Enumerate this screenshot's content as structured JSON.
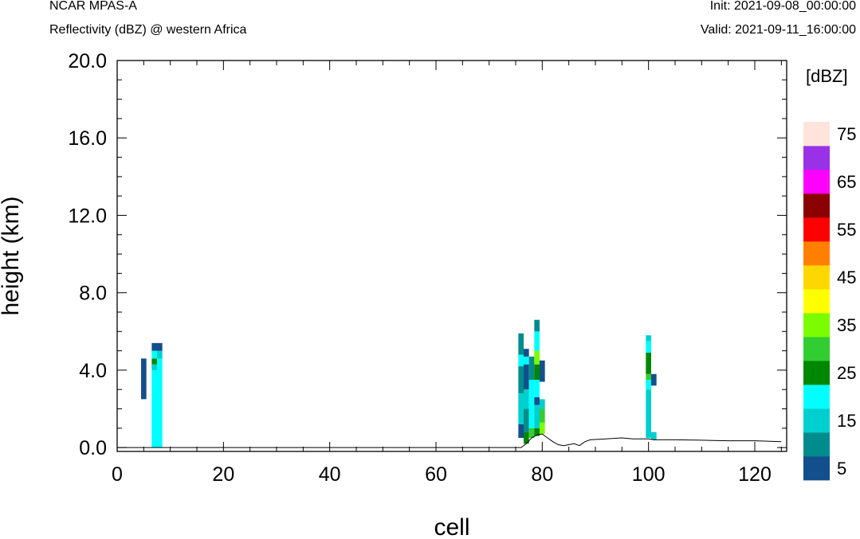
{
  "header": {
    "model": "NCAR MPAS-A",
    "field": "Reflectivity (dBZ) @ western Africa",
    "init": "Init: 2021-09-08_00:00:00",
    "valid": "Valid: 2021-09-11_16:00:00"
  },
  "chart_data": {
    "type": "heatmap",
    "xlabel": "cell",
    "ylabel": "height (km)",
    "xlim": [
      0,
      126
    ],
    "ylim": [
      -0.2,
      20.0
    ],
    "xticks": [
      0,
      20,
      40,
      60,
      80,
      100,
      120
    ],
    "yticks": [
      "0.0",
      "4.0",
      "8.0",
      "12.0",
      "16.0",
      "20.0"
    ],
    "grid": false,
    "colorbar": {
      "title": "[dBZ]",
      "levels": [
        5,
        10,
        15,
        20,
        25,
        30,
        35,
        40,
        45,
        50,
        55,
        60,
        65,
        70,
        75
      ],
      "tick_labels": [
        "5",
        "15",
        "25",
        "35",
        "45",
        "55",
        "65",
        "75"
      ],
      "colors": [
        "#134f8c",
        "#008c8c",
        "#00cfcf",
        "#00ffff",
        "#008700",
        "#32cd32",
        "#7cfc00",
        "#ffff00",
        "#ffd700",
        "#ff8000",
        "#ff0000",
        "#8b0000",
        "#ff00ff",
        "#9932e6",
        "#ffe4dc"
      ]
    },
    "terrain": [
      [
        0,
        0.0
      ],
      [
        76,
        0.0
      ],
      [
        77,
        0.2
      ],
      [
        78,
        0.5
      ],
      [
        79,
        0.65
      ],
      [
        80,
        0.7
      ],
      [
        81,
        0.5
      ],
      [
        82,
        0.3
      ],
      [
        83,
        0.15
      ],
      [
        84,
        0.1
      ],
      [
        85,
        0.15
      ],
      [
        86,
        0.2
      ],
      [
        87,
        0.1
      ],
      [
        88,
        0.3
      ],
      [
        89,
        0.4
      ],
      [
        92,
        0.45
      ],
      [
        95,
        0.5
      ],
      [
        97,
        0.45
      ],
      [
        100,
        0.45
      ],
      [
        101,
        0.4
      ],
      [
        105,
        0.4
      ],
      [
        110,
        0.38
      ],
      [
        115,
        0.35
      ],
      [
        120,
        0.35
      ],
      [
        125,
        0.3
      ]
    ],
    "cells": [
      {
        "x": 5,
        "y0": 2.5,
        "y1": 4.6,
        "dbz": 5
      },
      {
        "x": 7,
        "y0": 0.0,
        "y1": 4.0,
        "dbz": 20
      },
      {
        "x": 7,
        "y0": 4.0,
        "y1": 4.3,
        "dbz": 15
      },
      {
        "x": 7,
        "y0": 4.3,
        "y1": 4.6,
        "dbz": 25
      },
      {
        "x": 7,
        "y0": 4.6,
        "y1": 5.0,
        "dbz": 20
      },
      {
        "x": 7,
        "y0": 5.0,
        "y1": 5.4,
        "dbz": 5
      },
      {
        "x": 8,
        "y0": 0.0,
        "y1": 4.6,
        "dbz": 20
      },
      {
        "x": 8,
        "y0": 4.6,
        "y1": 5.0,
        "dbz": 15
      },
      {
        "x": 8,
        "y0": 5.0,
        "y1": 5.4,
        "dbz": 5
      },
      {
        "x": 76,
        "y0": 0.5,
        "y1": 1.2,
        "dbz": 5
      },
      {
        "x": 76,
        "y0": 1.2,
        "y1": 2.8,
        "dbz": 15
      },
      {
        "x": 76,
        "y0": 2.8,
        "y1": 4.2,
        "dbz": 10
      },
      {
        "x": 76,
        "y0": 4.2,
        "y1": 4.8,
        "dbz": 20
      },
      {
        "x": 76,
        "y0": 4.8,
        "y1": 5.9,
        "dbz": 10
      },
      {
        "x": 77,
        "y0": 0.2,
        "y1": 0.8,
        "dbz": 25
      },
      {
        "x": 77,
        "y0": 0.8,
        "y1": 2.0,
        "dbz": 10
      },
      {
        "x": 77,
        "y0": 2.0,
        "y1": 3.0,
        "dbz": 15
      },
      {
        "x": 77,
        "y0": 3.0,
        "y1": 4.3,
        "dbz": 5
      },
      {
        "x": 77,
        "y0": 4.3,
        "y1": 4.7,
        "dbz": 20
      },
      {
        "x": 77,
        "y0": 4.7,
        "y1": 5.1,
        "dbz": 5
      },
      {
        "x": 78,
        "y0": 0.5,
        "y1": 1.0,
        "dbz": 30
      },
      {
        "x": 78,
        "y0": 1.0,
        "y1": 3.5,
        "dbz": 20
      },
      {
        "x": 78,
        "y0": 3.5,
        "y1": 4.7,
        "dbz": 10
      },
      {
        "x": 79,
        "y0": 0.6,
        "y1": 1.0,
        "dbz": 25
      },
      {
        "x": 79,
        "y0": 1.0,
        "y1": 2.2,
        "dbz": 15
      },
      {
        "x": 79,
        "y0": 2.2,
        "y1": 2.6,
        "dbz": 5
      },
      {
        "x": 79,
        "y0": 2.6,
        "y1": 3.5,
        "dbz": 20
      },
      {
        "x": 79,
        "y0": 3.5,
        "y1": 4.3,
        "dbz": 25
      },
      {
        "x": 79,
        "y0": 4.3,
        "y1": 5.0,
        "dbz": 35
      },
      {
        "x": 79,
        "y0": 5.0,
        "y1": 6.0,
        "dbz": 20
      },
      {
        "x": 79,
        "y0": 6.0,
        "y1": 6.6,
        "dbz": 10
      },
      {
        "x": 80,
        "y0": 0.7,
        "y1": 1.3,
        "dbz": 35
      },
      {
        "x": 80,
        "y0": 1.3,
        "y1": 2.0,
        "dbz": 30
      },
      {
        "x": 80,
        "y0": 2.0,
        "y1": 2.5,
        "dbz": 15
      },
      {
        "x": 80,
        "y0": 3.4,
        "y1": 4.5,
        "dbz": 5
      },
      {
        "x": 100,
        "y0": 0.5,
        "y1": 3.0,
        "dbz": 15
      },
      {
        "x": 100,
        "y0": 3.0,
        "y1": 3.5,
        "dbz": 20
      },
      {
        "x": 100,
        "y0": 3.5,
        "y1": 3.8,
        "dbz": 30
      },
      {
        "x": 100,
        "y0": 3.8,
        "y1": 4.9,
        "dbz": 25
      },
      {
        "x": 100,
        "y0": 4.9,
        "y1": 5.5,
        "dbz": 20
      },
      {
        "x": 100,
        "y0": 5.5,
        "y1": 5.8,
        "dbz": 15
      },
      {
        "x": 101,
        "y0": 0.4,
        "y1": 0.8,
        "dbz": 15
      },
      {
        "x": 101,
        "y0": 3.2,
        "y1": 3.8,
        "dbz": 5
      }
    ]
  }
}
